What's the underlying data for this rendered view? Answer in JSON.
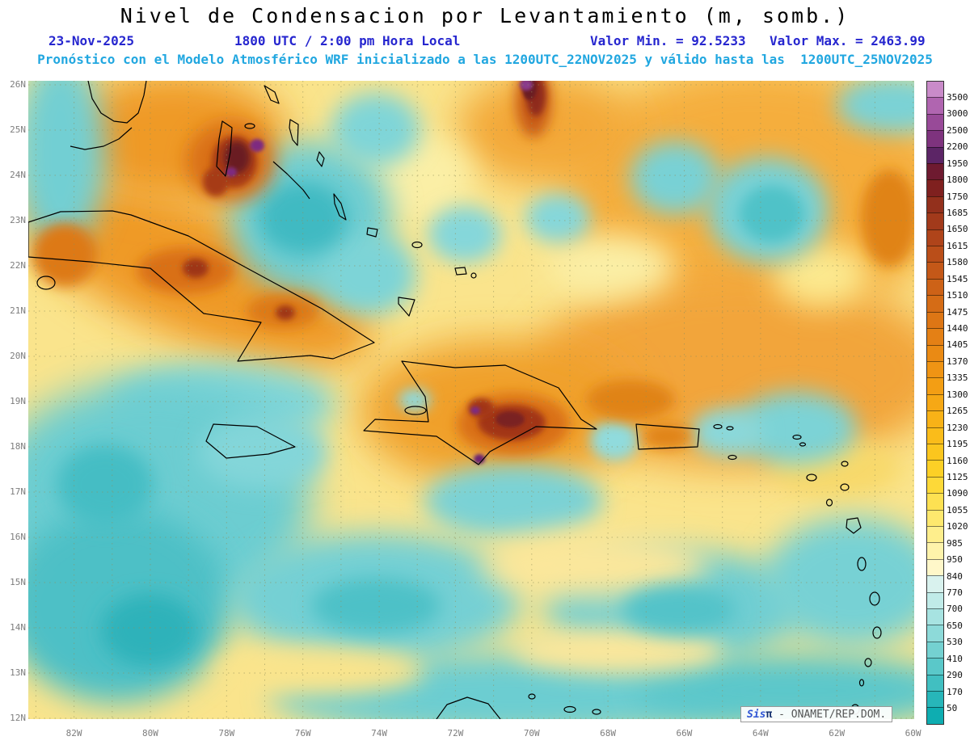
{
  "title": "Nivel de Condensacion por Levantamiento (m, somb.)",
  "header": {
    "date": "23-Nov-2025",
    "valid_time": "1800 UTC / 2:00 pm Hora Local",
    "min_value": "Valor Min. = 92.5233",
    "max_value": "Valor Max. = 2463.99",
    "forecast_note": "Pronóstico con el Modelo Atmosférico WRF inicializado a las 1200UTC_22NOV2025 y válido hasta las  1200UTC_25NOV2025"
  },
  "colors": {
    "header_blue": "#2626cf",
    "note_cyan": "#21a7e0",
    "axis_gray": "#7d7d7d",
    "land_outline": "#000000",
    "field_low_cyan": "#74d1d1",
    "field_mid_orange": "#f6a815",
    "field_high_purple": "#7e337e"
  },
  "map": {
    "lat_labels": [
      "26N",
      "25N",
      "24N",
      "23N",
      "22N",
      "21N",
      "20N",
      "19N",
      "18N",
      "17N",
      "16N",
      "15N",
      "14N",
      "13N",
      "12N"
    ],
    "lon_labels": [
      "82W",
      "80W",
      "78W",
      "76W",
      "74W",
      "72W",
      "70W",
      "68W",
      "66W",
      "64W",
      "62W",
      "60W"
    ]
  },
  "colorbar": {
    "labels": [
      "3500",
      "3000",
      "2500",
      "2200",
      "1950",
      "1800",
      "1750",
      "1685",
      "1650",
      "1615",
      "1580",
      "1545",
      "1510",
      "1475",
      "1440",
      "1405",
      "1370",
      "1335",
      "1300",
      "1265",
      "1230",
      "1195",
      "1160",
      "1125",
      "1090",
      "1055",
      "1020",
      "985",
      "950",
      "840",
      "770",
      "700",
      "650",
      "530",
      "410",
      "290",
      "170",
      "50"
    ],
    "colors": [
      "#c98bc9",
      "#b065b0",
      "#984a98",
      "#7e337e",
      "#5c2566",
      "#6e1a30",
      "#7f201f",
      "#93301c",
      "#a23a1b",
      "#af441a",
      "#ba4e19",
      "#c45818",
      "#cd6217",
      "#d56c16",
      "#dd7615",
      "#e48015",
      "#ea8a14",
      "#ef9414",
      "#f39e14",
      "#f6a815",
      "#f8b217",
      "#fabc1a",
      "#fbc61e",
      "#fcd026",
      "#fdd938",
      "#fde152",
      "#fee86e",
      "#feee8c",
      "#fef3ab",
      "#fff7c9",
      "#d9f2ee",
      "#c0ebe8",
      "#a7e3e1",
      "#8ddad9",
      "#74d1d1",
      "#5ac8c9",
      "#41bfc1",
      "#27b6b9",
      "#0eadb1"
    ]
  },
  "chart_data": {
    "type": "heatmap",
    "title": "Nivel de Condensacion por Levantamiento (m, somb.)",
    "units": "m",
    "value_min": 92.5233,
    "value_max": 2463.99,
    "lat_range": [
      "12N",
      "26N"
    ],
    "lon_range": [
      "82W",
      "60W"
    ],
    "levels": [
      50,
      170,
      290,
      410,
      530,
      650,
      700,
      770,
      840,
      950,
      985,
      1020,
      1055,
      1090,
      1125,
      1160,
      1195,
      1230,
      1265,
      1300,
      1335,
      1370,
      1405,
      1440,
      1475,
      1510,
      1545,
      1580,
      1615,
      1650,
      1685,
      1750,
      1800,
      1950,
      2200,
      2500,
      3000,
      3500
    ]
  },
  "watermark": {
    "brand_sis": "Sis",
    "brand_pi": "π",
    "credit": " - ONAMET/REP.DOM."
  }
}
